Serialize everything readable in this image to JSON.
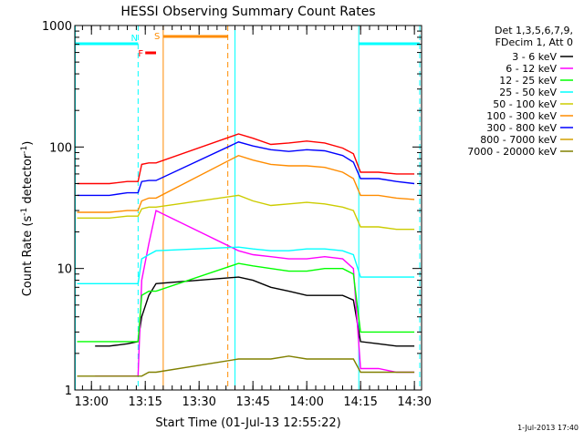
{
  "chart_data": {
    "type": "line",
    "title": "HESSI Observing Summary Count Rates",
    "xlabel": "Start Time (01-Jul-13 12:55:22)",
    "ylabel": "Count Rate (s⁻¹ detector⁻¹)",
    "y_scale": "log",
    "ylim": [
      1,
      1000
    ],
    "xlim": [
      "12:55:22",
      "14:32:00"
    ],
    "x_ticks": [
      "13:00",
      "13:15",
      "13:30",
      "13:45",
      "14:00",
      "14:15",
      "14:30"
    ],
    "y_ticks": [
      "1",
      "10",
      "100",
      "1000"
    ],
    "legend_header": [
      "Det 1,3,5,6,7,9,",
      "FDecim 1, Att 0"
    ],
    "legend_position": "right",
    "timestamp": "1-Jul-2013 17:40",
    "flag_labels": {
      "N": "N",
      "S": "S",
      "F": "F"
    },
    "flag_colors": {
      "night": "#00ffff",
      "saa": "#ff8c00",
      "flare": "#ff0000"
    },
    "flag_bars": [
      {
        "flag": "N",
        "start": "12:55:22",
        "end": "13:13:00"
      },
      {
        "flag": "N",
        "start": "14:14:30",
        "end": "14:31:30"
      },
      {
        "flag": "S",
        "start": "13:20:00",
        "end": "13:38:00"
      },
      {
        "flag": "F",
        "start": "13:15:00",
        "end": "13:18:00"
      }
    ],
    "vertical_markers": [
      {
        "time": "12:55:30",
        "style": "solid",
        "color": "#00ffff"
      },
      {
        "time": "13:13:00",
        "style": "dashed",
        "color": "#00ffff"
      },
      {
        "time": "13:20:00",
        "style": "solid",
        "color": "#ff8c00"
      },
      {
        "time": "13:38:00",
        "style": "dashed",
        "color": "#ff8c00"
      },
      {
        "time": "13:40:00",
        "style": "solid",
        "color": "#00ffff"
      },
      {
        "time": "14:14:30",
        "style": "solid",
        "color": "#00ffff"
      },
      {
        "time": "14:31:30",
        "style": "dashed",
        "color": "#00ffff"
      }
    ],
    "series": [
      {
        "name": "3 - 6 keV",
        "color": "#000000",
        "x": [
          "13:01",
          "13:05",
          "13:10",
          "13:13",
          "13:14",
          "13:16",
          "13:18",
          "13:41",
          "13:45",
          "13:50",
          "13:55",
          "14:00",
          "14:05",
          "14:10",
          "14:13",
          "14:15",
          "14:20",
          "14:25",
          "14:30"
        ],
        "y": [
          2.3,
          2.3,
          2.4,
          2.5,
          4,
          6,
          7.5,
          8.5,
          8,
          7,
          6.5,
          6,
          6,
          6,
          5.5,
          2.5,
          2.4,
          2.3,
          2.3
        ]
      },
      {
        "name": "6 - 12 keV",
        "color": "#ff00ff",
        "x": [
          "13:01",
          "13:05",
          "13:10",
          "13:13",
          "13:14",
          "13:16",
          "13:18",
          "13:41",
          "13:45",
          "13:50",
          "13:55",
          "14:00",
          "14:05",
          "14:10",
          "14:13",
          "14:15",
          "14:20",
          "14:25",
          "14:30"
        ],
        "y": [
          1.3,
          1.3,
          1.3,
          1.3,
          8,
          16,
          30,
          14,
          13,
          12.5,
          12,
          12,
          12.5,
          12,
          10,
          1.5,
          1.5,
          1.4,
          1.4
        ]
      },
      {
        "name": "12 - 25 keV",
        "color": "#00ff00",
        "x": [
          "12:56",
          "13:05",
          "13:10",
          "13:13",
          "13:14",
          "13:16",
          "13:18",
          "13:41",
          "13:45",
          "13:50",
          "13:55",
          "14:00",
          "14:05",
          "14:10",
          "14:13",
          "14:15",
          "14:20",
          "14:25",
          "14:30"
        ],
        "y": [
          2.5,
          2.5,
          2.5,
          2.5,
          6,
          6.5,
          6.5,
          11,
          10.5,
          10,
          9.5,
          9.5,
          10,
          10,
          9,
          3,
          3,
          3,
          3
        ]
      },
      {
        "name": "25 - 50 keV",
        "color": "#00ffff",
        "x": [
          "12:56",
          "13:05",
          "13:10",
          "13:13",
          "13:14",
          "13:16",
          "13:18",
          "13:41",
          "13:45",
          "13:50",
          "13:55",
          "14:00",
          "14:05",
          "14:10",
          "14:13",
          "14:15",
          "14:20",
          "14:25",
          "14:30"
        ],
        "y": [
          7.5,
          7.5,
          7.5,
          7.5,
          12,
          13,
          14,
          15,
          14.5,
          14,
          14,
          14.5,
          14.5,
          14,
          13,
          8.5,
          8.5,
          8.5,
          8.5
        ]
      },
      {
        "name": "50 - 100 keV",
        "color": "#cccc00",
        "x": [
          "12:56",
          "13:05",
          "13:10",
          "13:13",
          "13:14",
          "13:16",
          "13:18",
          "13:41",
          "13:45",
          "13:50",
          "13:55",
          "14:00",
          "14:05",
          "14:10",
          "14:13",
          "14:15",
          "14:20",
          "14:25",
          "14:30"
        ],
        "y": [
          26,
          26,
          27,
          27,
          31,
          32,
          32,
          40,
          36,
          33,
          34,
          35,
          34,
          32,
          30,
          22,
          22,
          21,
          21
        ]
      },
      {
        "name": "100 - 300 keV",
        "color": "#ff8c00",
        "x": [
          "12:56",
          "13:05",
          "13:10",
          "13:13",
          "13:14",
          "13:16",
          "13:18",
          "13:41",
          "13:45",
          "13:50",
          "13:55",
          "14:00",
          "14:05",
          "14:10",
          "14:13",
          "14:15",
          "14:20",
          "14:25",
          "14:30"
        ],
        "y": [
          29,
          29,
          30,
          30,
          36,
          38,
          38,
          85,
          78,
          72,
          70,
          70,
          68,
          62,
          55,
          40,
          40,
          38,
          37
        ]
      },
      {
        "name": "300 - 800 keV",
        "color": "#0000ff",
        "x": [
          "12:56",
          "13:05",
          "13:10",
          "13:13",
          "13:14",
          "13:16",
          "13:18",
          "13:41",
          "13:45",
          "13:50",
          "13:55",
          "14:00",
          "14:05",
          "14:10",
          "14:13",
          "14:15",
          "14:20",
          "14:25",
          "14:30"
        ],
        "y": [
          40,
          40,
          42,
          42,
          52,
          53,
          53,
          110,
          102,
          95,
          92,
          95,
          93,
          85,
          75,
          55,
          55,
          52,
          50
        ]
      },
      {
        "name": "800 - 7000 keV",
        "color": "#d2a000",
        "x": [],
        "y": []
      },
      {
        "name": "7000 - 20000 keV",
        "color": "#808000",
        "x": [
          "12:56",
          "13:05",
          "13:10",
          "13:13",
          "13:14",
          "13:16",
          "13:18",
          "13:41",
          "13:45",
          "13:50",
          "13:55",
          "14:00",
          "14:05",
          "14:10",
          "14:13",
          "14:15",
          "14:20",
          "14:25",
          "14:30"
        ],
        "y": [
          1.3,
          1.3,
          1.3,
          1.3,
          1.3,
          1.4,
          1.4,
          1.8,
          1.8,
          1.8,
          1.9,
          1.8,
          1.8,
          1.8,
          1.8,
          1.4,
          1.4,
          1.4,
          1.4
        ]
      },
      {
        "name": "",
        "color": "#ff0000",
        "x": [
          "12:56",
          "13:05",
          "13:10",
          "13:13",
          "13:14",
          "13:16",
          "13:18",
          "13:41",
          "13:45",
          "13:50",
          "13:55",
          "14:00",
          "14:05",
          "14:10",
          "14:13",
          "14:15",
          "14:20",
          "14:25",
          "14:30"
        ],
        "y": [
          50,
          50,
          52,
          52,
          72,
          74,
          74,
          128,
          118,
          105,
          108,
          112,
          108,
          98,
          88,
          62,
          62,
          60,
          60
        ]
      }
    ]
  }
}
